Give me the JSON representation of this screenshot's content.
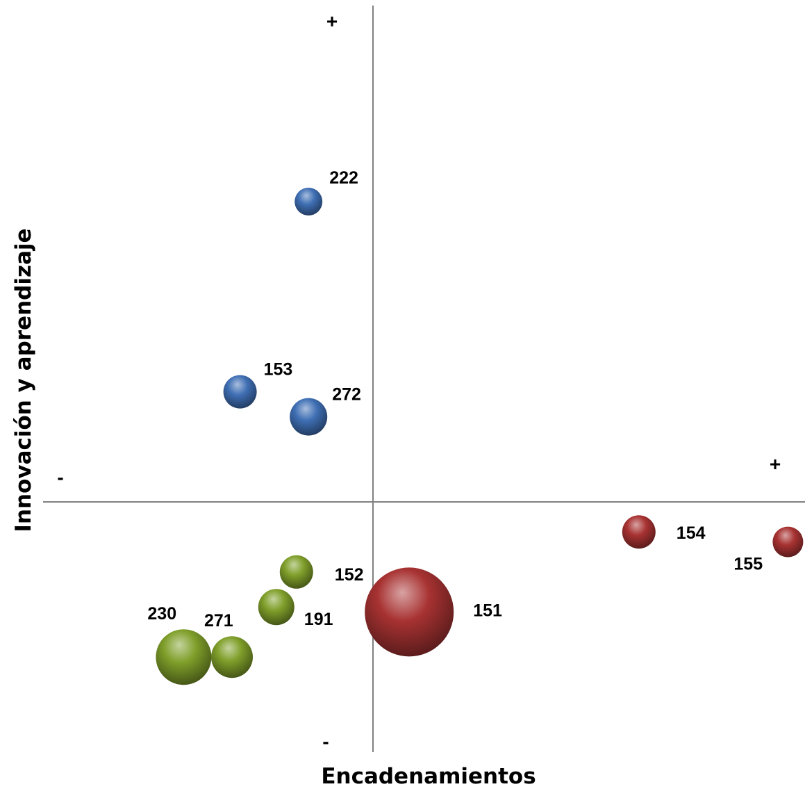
{
  "chart_data": {
    "type": "scatter",
    "xlabel": "Encadenamientos",
    "ylabel": "Innovación y aprendizaje",
    "x_axis_signs": {
      "negative": "-",
      "positive": "+"
    },
    "y_axis_signs": {
      "negative": "-",
      "positive": "+"
    },
    "grid": false,
    "legend": "none",
    "series": [
      {
        "color": "#3f6fb4",
        "points": [
          {
            "label": "222",
            "x": -0.16,
            "y": 0.6,
            "size": 1.0
          },
          {
            "label": "153",
            "x": -0.33,
            "y": 0.22,
            "size": 1.2
          },
          {
            "label": "272",
            "x": -0.16,
            "y": 0.17,
            "size": 1.35
          }
        ]
      },
      {
        "color": "#7f9f2a",
        "points": [
          {
            "label": "152",
            "x": -0.19,
            "y": -0.14,
            "size": 1.2
          },
          {
            "label": "191",
            "x": -0.24,
            "y": -0.21,
            "size": 1.3
          },
          {
            "label": "230",
            "x": -0.47,
            "y": -0.31,
            "size": 2.0
          },
          {
            "label": "271",
            "x": -0.35,
            "y": -0.31,
            "size": 1.5
          }
        ]
      },
      {
        "color": "#a83232",
        "points": [
          {
            "label": "151",
            "x": 0.09,
            "y": -0.22,
            "size": 3.2
          },
          {
            "label": "154",
            "x": 0.66,
            "y": -0.06,
            "size": 1.2
          },
          {
            "label": "155",
            "x": 1.03,
            "y": -0.08,
            "size": 1.1
          }
        ]
      }
    ]
  }
}
